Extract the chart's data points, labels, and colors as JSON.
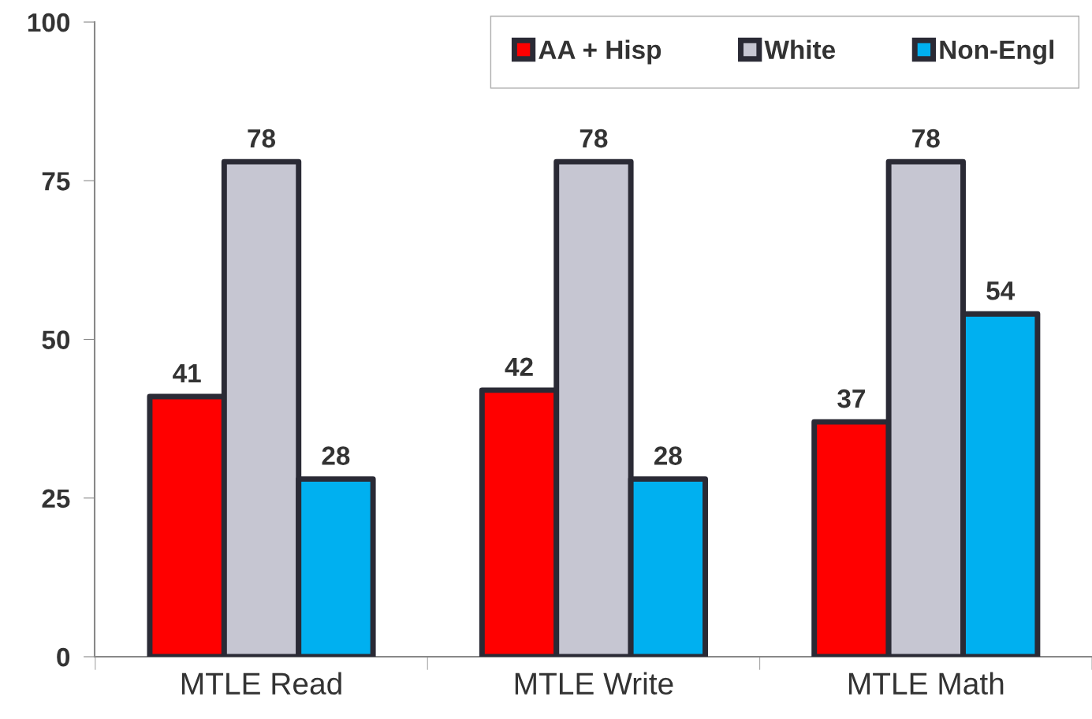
{
  "chart_data": {
    "type": "bar",
    "categories": [
      "MTLE Read",
      "MTLE Write",
      "MTLE Math"
    ],
    "series": [
      {
        "name": "AA + Hisp",
        "color": "#ff0000",
        "values": [
          41,
          42,
          37
        ]
      },
      {
        "name": "White",
        "color": "#c6c6d2",
        "values": [
          78,
          78,
          78
        ]
      },
      {
        "name": "Non-Engl",
        "color": "#00b0f0",
        "values": [
          28,
          28,
          54
        ]
      }
    ],
    "ylim": [
      0,
      100
    ],
    "yticks": [
      0,
      25,
      50,
      75,
      100
    ],
    "grid": false,
    "legend": "top right",
    "data_labels": true
  }
}
